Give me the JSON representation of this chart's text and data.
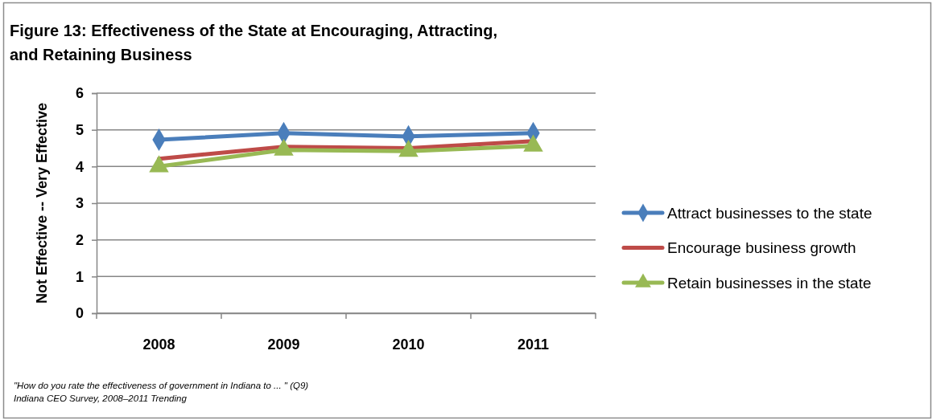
{
  "chart_data": {
    "type": "line",
    "title": "Figure 13: Effectiveness of the State at Encouraging, Attracting, and Retaining Business",
    "ylabel": "Not Effective -- Very Effective",
    "categories": [
      "2008",
      "2009",
      "2010",
      "2011"
    ],
    "series": [
      {
        "name": "Attract businesses to the state",
        "color": "#4a7ebb",
        "marker": "diamond",
        "values": [
          4.73,
          4.91,
          4.82,
          4.91
        ]
      },
      {
        "name": "Encourage business growth",
        "color": "#be4b48",
        "marker": "none",
        "values": [
          4.21,
          4.54,
          4.5,
          4.69
        ]
      },
      {
        "name": "Retain businesses in the state",
        "color": "#98b954",
        "marker": "triangle",
        "values": [
          4.0,
          4.45,
          4.42,
          4.56
        ]
      }
    ],
    "ylim": [
      0,
      6
    ],
    "yticks": [
      0,
      1,
      2,
      3,
      4,
      5,
      6
    ],
    "grid": "y",
    "legend": "right",
    "line_style": "solid",
    "annotations": [
      "\"How do you rate the effectiveness of government in Indiana to ... \" (Q9)",
      "Indiana CEO Survey, 2008–2011 Trending"
    ]
  }
}
